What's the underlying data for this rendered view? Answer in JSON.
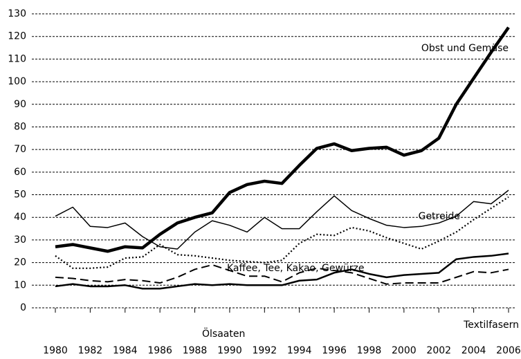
{
  "chart_data": {
    "type": "line",
    "x": [
      1980,
      1981,
      1982,
      1983,
      1984,
      1985,
      1986,
      1987,
      1988,
      1989,
      1990,
      1991,
      1992,
      1993,
      1994,
      1995,
      1996,
      1997,
      1998,
      1999,
      2000,
      2001,
      2002,
      2003,
      2004,
      2005,
      2006
    ],
    "xticks": [
      1980,
      1982,
      1984,
      1986,
      1988,
      1990,
      1992,
      1994,
      1996,
      1998,
      2000,
      2002,
      2004,
      2006
    ],
    "xlim": [
      1980,
      2006
    ],
    "ylim": [
      0,
      130
    ],
    "yticks": [
      0,
      10,
      20,
      30,
      40,
      50,
      60,
      70,
      80,
      90,
      100,
      110,
      120,
      130
    ],
    "grid": true,
    "series": [
      {
        "name": "Obst und Gemüse",
        "color": "#000000",
        "line_style": "thick",
        "values": [
          27,
          28,
          26.5,
          25,
          27,
          26.5,
          32.5,
          37.5,
          40,
          42,
          51,
          54.5,
          56,
          55,
          63,
          70.5,
          72.5,
          69.5,
          70.5,
          71,
          67.5,
          69.5,
          75,
          90,
          101.5,
          113,
          124
        ]
      },
      {
        "name": "Getreide",
        "color": "#000000",
        "line_style": "thin",
        "values": [
          40.5,
          44.5,
          36,
          35.5,
          37.5,
          31.5,
          27,
          26,
          33.5,
          38.5,
          36.5,
          33.5,
          40,
          35,
          35,
          42.5,
          49.5,
          43,
          39.5,
          36.5,
          35.5,
          36,
          37.5,
          40.5,
          47,
          46,
          52
        ]
      },
      {
        "name": "Kaffee, Tee, Kakao, Gewürze",
        "color": "#000000",
        "line_style": "dotted",
        "values": [
          23,
          17.5,
          17.5,
          18,
          22,
          22.5,
          28,
          23.5,
          23,
          22,
          21,
          20.5,
          20,
          21,
          28.5,
          32.5,
          32,
          35.5,
          34,
          31,
          28.5,
          26,
          29.5,
          33.5,
          39,
          44,
          49
        ]
      },
      {
        "name": "Textilfasern",
        "color": "#000000",
        "line_style": "dashed",
        "values": [
          13.5,
          13,
          12,
          11.5,
          12.5,
          12,
          11,
          13.5,
          17,
          19,
          16.5,
          14,
          14,
          11.5,
          15.5,
          17.5,
          16.5,
          15.5,
          13,
          10.5,
          11,
          11,
          11,
          13.5,
          16,
          15.5,
          17
        ]
      },
      {
        "name": "Ölsaaten",
        "color": "#000000",
        "line_style": "medium",
        "values": [
          9.5,
          10.5,
          9.5,
          9.5,
          10,
          8.5,
          8.5,
          9.5,
          10.5,
          10,
          10.5,
          10,
          10,
          10,
          12,
          12.5,
          15.5,
          17,
          15,
          13.5,
          14.5,
          15,
          15.5,
          21.5,
          22.5,
          23,
          24
        ]
      }
    ]
  }
}
